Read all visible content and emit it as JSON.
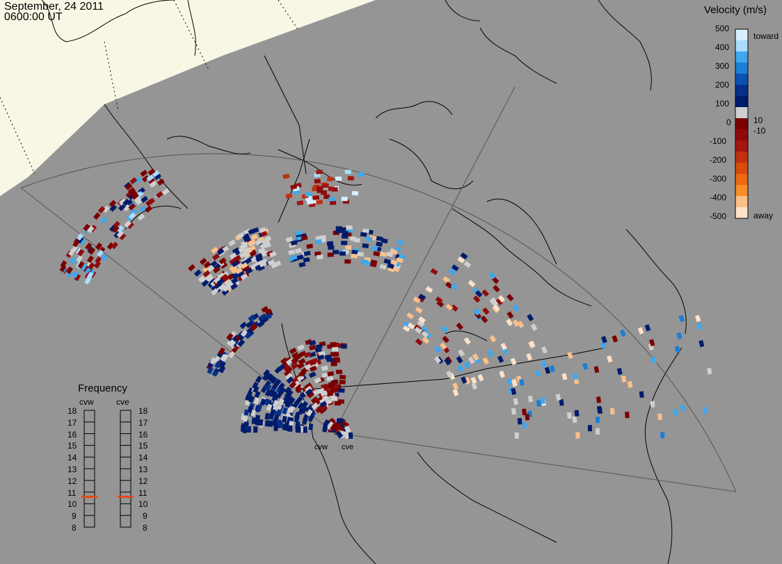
{
  "header": {
    "date": "September, 24 2011",
    "time": "0600:00 UT"
  },
  "sites": [
    {
      "name": "cvw"
    },
    {
      "name": "cve"
    }
  ],
  "velocity_legend": {
    "title": "Velocity (m/s)",
    "ticks": [
      "500",
      "400",
      "300",
      "200",
      "100",
      "0",
      "-100",
      "-200",
      "-300",
      "-400",
      "-500"
    ],
    "inner_labels": [
      "10",
      "-10"
    ],
    "end_labels": {
      "top": "toward",
      "bottom": "away"
    },
    "colors": [
      "#d7efff",
      "#a9dcff",
      "#3fa8ee",
      "#1a7fd6",
      "#0b52b0",
      "#062f8a",
      "#001b6b",
      "#cfcfcf",
      "#7a0000",
      "#8f0b0b",
      "#a31610",
      "#c0300f",
      "#d94a0c",
      "#ee6a10",
      "#f88e2a",
      "#fbc08a",
      "#fde1c9"
    ]
  },
  "frequency_legend": {
    "title": "Frequency",
    "columns": [
      "cvw",
      "cve"
    ],
    "ticks": [
      "18",
      "17",
      "16",
      "15",
      "14",
      "13",
      "12",
      "11",
      "10",
      "9",
      "8"
    ],
    "cvw_value_mhz": 10.6,
    "cve_value_mhz": 10.6,
    "marker_color": "#e8481a"
  },
  "colors": {
    "background": "#959595",
    "land_ice": "#f8f7e6",
    "toward_strong": "#001b6b",
    "away_strong": "#7a0000",
    "ground_scatter": "#cfcfcf"
  }
}
